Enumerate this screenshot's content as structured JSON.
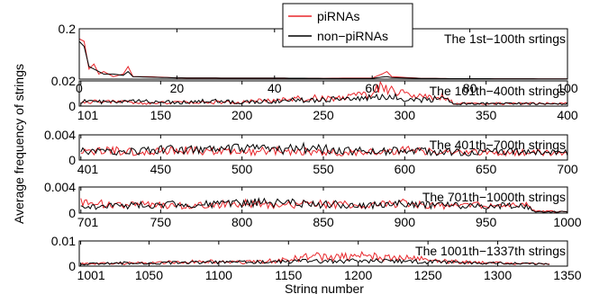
{
  "chart_data": {
    "type": "line",
    "ylabel": "Average frequency of strings",
    "xlabel": "String number",
    "series_colors": {
      "piRNAs": "#e8262b",
      "non-piRNAs": "#000000"
    },
    "legend": {
      "placement": "top-center",
      "entries": [
        "piRNAs",
        "non−piRNAs"
      ]
    },
    "grid": false,
    "panels": [
      {
        "title": "The 1st−100th srtings",
        "xlim": [
          0,
          100
        ],
        "ylim": [
          0,
          0.2
        ],
        "xticks": [
          0,
          20,
          40,
          60,
          80,
          100
        ],
        "xtick_labels": [
          "0",
          "20",
          "40",
          "60",
          "80",
          "100"
        ],
        "yticks": [
          0.2
        ],
        "ytick_labels": [
          "0.2"
        ],
        "series": [
          {
            "name": "piRNAs",
            "x": [
              0,
              1,
              2,
              3,
              4,
              5,
              7,
              9,
              10,
              11,
              14,
              20,
              30,
              40,
              50,
              55,
              60,
              62,
              63,
              64,
              70,
              75,
              100
            ],
            "y": [
              0.16,
              0.15,
              0.04,
              0.06,
              0.02,
              0.03,
              0.01,
              0.02,
              0.05,
              0.01,
              0.01,
              0.005,
              0.004,
              0.004,
              0.003,
              0.004,
              0.004,
              0.02,
              0.03,
              0.01,
              0.003,
              0.002,
              0.001
            ]
          },
          {
            "name": "non-piRNAs",
            "x": [
              0,
              1,
              2,
              3,
              4,
              5,
              7,
              9,
              10,
              11,
              14,
              20,
              30,
              40,
              50,
              55,
              60,
              62,
              63,
              64,
              70,
              75,
              100
            ],
            "y": [
              0.15,
              0.13,
              0.05,
              0.04,
              0.03,
              0.02,
              0.02,
              0.015,
              0.03,
              0.01,
              0.008,
              0.005,
              0.004,
              0.004,
              0.003,
              0.003,
              0.003,
              0.008,
              0.01,
              0.006,
              0.003,
              0.002,
              0.001
            ]
          }
        ]
      },
      {
        "title": "The 101th−400th strings",
        "xlim": [
          100,
          400
        ],
        "ylim": [
          0,
          0.02
        ],
        "xticks": [
          101,
          150,
          200,
          250,
          300,
          350,
          400
        ],
        "xtick_labels": [
          "101",
          "150",
          "200",
          "250",
          "300",
          "350",
          "400"
        ],
        "yticks": [
          0,
          0.02
        ],
        "ytick_labels": [
          "0",
          "0.02"
        ],
        "series": [
          {
            "name": "piRNAs",
            "x": [
              101,
              120,
              140,
              160,
              180,
              200,
              220,
              240,
              260,
              275,
              285,
              290,
              295,
              300,
              310,
              320,
              325,
              330,
              340,
              360,
              380,
              400
            ],
            "y": [
              0.003,
              0.004,
              0.002,
              0.003,
              0.003,
              0.003,
              0.005,
              0.006,
              0.007,
              0.008,
              0.014,
              0.013,
              0.015,
              0.009,
              0.007,
              0.006,
              0.008,
              0.002,
              0.002,
              0.002,
              0.002,
              0.002
            ]
          },
          {
            "name": "non-piRNAs",
            "x": [
              101,
              120,
              140,
              160,
              180,
              200,
              220,
              240,
              260,
              275,
              285,
              290,
              295,
              300,
              310,
              320,
              325,
              330,
              340,
              360,
              380,
              400
            ],
            "y": [
              0.004,
              0.003,
              0.004,
              0.003,
              0.004,
              0.003,
              0.004,
              0.005,
              0.006,
              0.006,
              0.007,
              0.006,
              0.007,
              0.006,
              0.005,
              0.006,
              0.005,
              0.002,
              0.002,
              0.002,
              0.002,
              0.002
            ]
          }
        ]
      },
      {
        "title": "The 401th−700th strings",
        "xlim": [
          400,
          700
        ],
        "ylim": [
          0,
          0.004
        ],
        "xticks": [
          401,
          450,
          500,
          550,
          600,
          650,
          700
        ],
        "xtick_labels": [
          "401",
          "450",
          "500",
          "550",
          "600",
          "650",
          "700"
        ],
        "yticks": [
          0,
          0.004
        ],
        "ytick_labels": [
          "0",
          "0.004"
        ],
        "series": [
          {
            "name": "piRNAs",
            "x": [
              401,
              420,
              440,
              460,
              480,
              500,
              520,
              540,
              560,
              580,
              600,
              620,
              640,
              660,
              680,
              700
            ],
            "y": [
              0.0012,
              0.0015,
              0.0012,
              0.0016,
              0.0014,
              0.0013,
              0.0015,
              0.0014,
              0.0012,
              0.0013,
              0.0016,
              0.0012,
              0.0013,
              0.0011,
              0.0012,
              0.001
            ]
          },
          {
            "name": "non-piRNAs",
            "x": [
              401,
              420,
              440,
              460,
              480,
              500,
              520,
              540,
              560,
              580,
              600,
              620,
              640,
              660,
              680,
              700
            ],
            "y": [
              0.0014,
              0.0013,
              0.0015,
              0.0017,
              0.0016,
              0.0018,
              0.0016,
              0.0019,
              0.0015,
              0.0014,
              0.0015,
              0.0013,
              0.0012,
              0.0014,
              0.0012,
              0.0012
            ]
          }
        ]
      },
      {
        "title": "The 701th−1000th strings",
        "xlim": [
          700,
          1000
        ],
        "ylim": [
          0,
          0.004
        ],
        "xticks": [
          701,
          750,
          800,
          850,
          900,
          950,
          1000
        ],
        "xtick_labels": [
          "701",
          "750",
          "800",
          "850",
          "900",
          "950",
          "1000"
        ],
        "yticks": [
          0,
          0.004
        ],
        "ytick_labels": [
          "0",
          "0.004"
        ],
        "series": [
          {
            "name": "piRNAs",
            "x": [
              701,
              720,
              740,
              760,
              780,
              800,
              820,
              840,
              860,
              880,
              900,
              920,
              940,
              960,
              975,
              980,
              1000
            ],
            "y": [
              0.0018,
              0.0012,
              0.0013,
              0.0011,
              0.0013,
              0.0015,
              0.0012,
              0.0014,
              0.0013,
              0.0012,
              0.0015,
              0.0011,
              0.0012,
              0.0011,
              0.0012,
              0.0003,
              0.0002
            ]
          },
          {
            "name": "non-piRNAs",
            "x": [
              701,
              720,
              740,
              760,
              780,
              800,
              820,
              840,
              860,
              880,
              900,
              920,
              940,
              960,
              975,
              980,
              1000
            ],
            "y": [
              0.0009,
              0.0011,
              0.0012,
              0.0014,
              0.0013,
              0.0015,
              0.0016,
              0.0014,
              0.0013,
              0.0012,
              0.0014,
              0.0012,
              0.0011,
              0.0012,
              0.0011,
              0.0002,
              0.0002
            ]
          }
        ]
      },
      {
        "title": "The 1001th−1337th strings",
        "xlim": [
          1000,
          1350
        ],
        "ylim": [
          0,
          0.01
        ],
        "xticks": [
          1001,
          1050,
          1100,
          1150,
          1200,
          1250,
          1300,
          1350
        ],
        "xtick_labels": [
          "1001",
          "1050",
          "1100",
          "1150",
          "1200",
          "1250",
          "1300",
          "1350"
        ],
        "yticks": [
          0,
          0.01
        ],
        "ytick_labels": [
          "0",
          "0.01"
        ],
        "series": [
          {
            "name": "piRNAs",
            "x": [
              1001,
              1030,
              1060,
              1090,
              1120,
              1150,
              1165,
              1180,
              1200,
              1220,
              1240,
              1260,
              1280,
              1300,
              1320,
              1337
            ],
            "y": [
              0.001,
              0.001,
              0.0015,
              0.0018,
              0.0015,
              0.0025,
              0.004,
              0.0035,
              0.004,
              0.0035,
              0.003,
              0.002,
              0.0015,
              0.0012,
              0.001,
              0.0008
            ]
          },
          {
            "name": "non-piRNAs",
            "x": [
              1001,
              1030,
              1060,
              1090,
              1120,
              1150,
              1165,
              1180,
              1200,
              1220,
              1240,
              1260,
              1280,
              1300,
              1320,
              1337
            ],
            "y": [
              0.0008,
              0.0012,
              0.0013,
              0.0014,
              0.0016,
              0.0018,
              0.002,
              0.0019,
              0.0021,
              0.002,
              0.0018,
              0.0016,
              0.0014,
              0.0012,
              0.001,
              0.0008
            ]
          }
        ]
      }
    ]
  }
}
